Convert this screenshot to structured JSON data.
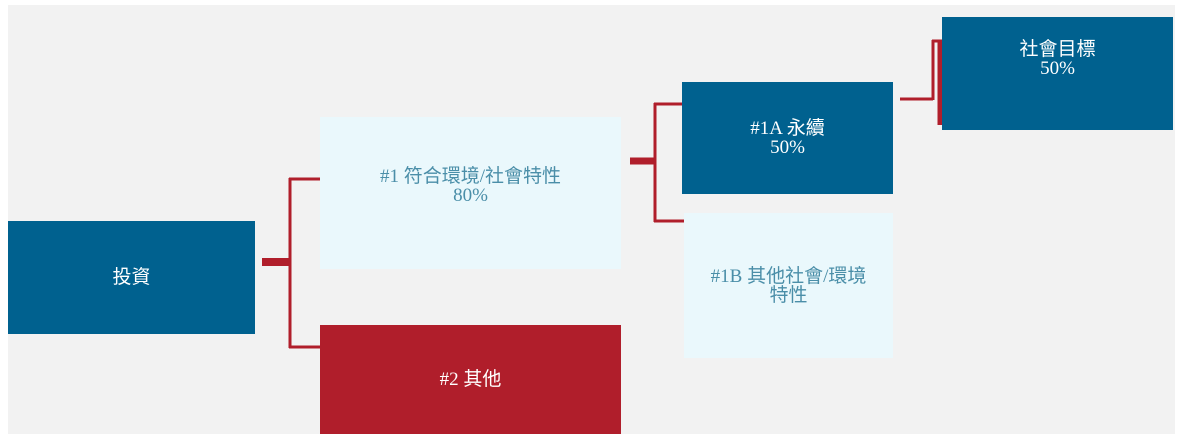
{
  "nodes": [
    {
      "lines": [
        "投資"
      ]
    },
    {
      "lines": [
        "#1 符合環境/社會特性",
        "80%"
      ]
    },
    {
      "lines": [
        "#2 其他"
      ]
    },
    {
      "lines": [
        "#1A 永續",
        "50%"
      ]
    },
    {
      "lines": [
        "#1B 其他社會/環境",
        "特性"
      ]
    },
    {
      "lines": [
        "社會目標",
        "50%"
      ]
    }
  ]
}
